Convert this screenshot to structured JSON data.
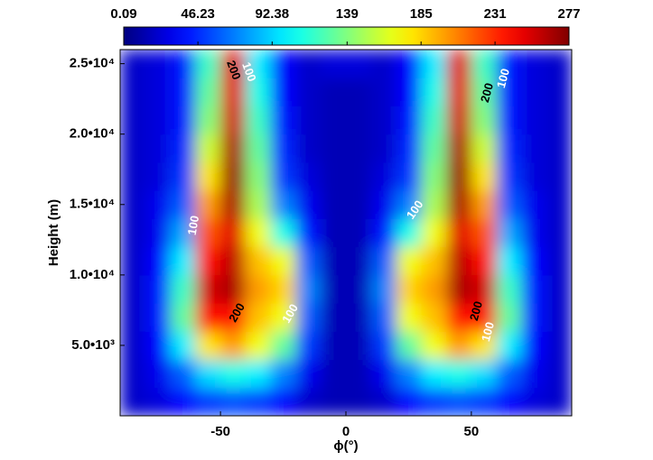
{
  "chart_data": {
    "type": "heatmap",
    "colormap": "jet",
    "xlabel": "ϕ(°)",
    "ylabel": "Height (m)",
    "xlim": [
      -90,
      90
    ],
    "xticks": [
      -50,
      0,
      50
    ],
    "ylim": [
      0,
      26000
    ],
    "yticks": [
      {
        "value": 5000,
        "label": "5.0•10³"
      },
      {
        "value": 10000,
        "label": "1.0•10⁴"
      },
      {
        "value": 15000,
        "label": "1.5•10⁴"
      },
      {
        "value": 20000,
        "label": "2.0•10⁴"
      },
      {
        "value": 25000,
        "label": "2.5•10⁴"
      }
    ],
    "clim": [
      0.09,
      277
    ],
    "cticks": [
      0.09,
      46.23,
      92.38,
      139,
      185,
      231,
      277
    ],
    "x": [
      -85,
      -75,
      -65,
      -55,
      -45,
      -35,
      -25,
      -15,
      -5,
      5,
      15,
      25,
      35,
      45,
      55,
      65,
      75,
      85
    ],
    "y": [
      1000,
      3000,
      5000,
      7000,
      9000,
      11000,
      13000,
      15000,
      17000,
      19000,
      21000,
      23000,
      25000
    ],
    "values": [
      [
        20,
        25,
        35,
        50,
        55,
        50,
        35,
        20,
        15,
        15,
        20,
        35,
        50,
        55,
        50,
        35,
        25,
        20
      ],
      [
        20,
        30,
        60,
        95,
        110,
        100,
        70,
        30,
        15,
        15,
        30,
        70,
        100,
        110,
        95,
        60,
        30,
        20
      ],
      [
        20,
        35,
        100,
        180,
        200,
        170,
        130,
        50,
        15,
        15,
        50,
        130,
        170,
        200,
        180,
        100,
        35,
        20
      ],
      [
        20,
        40,
        130,
        240,
        240,
        190,
        170,
        60,
        15,
        15,
        60,
        170,
        190,
        240,
        240,
        130,
        40,
        20
      ],
      [
        20,
        40,
        120,
        255,
        265,
        200,
        185,
        70,
        15,
        15,
        70,
        185,
        200,
        265,
        255,
        120,
        40,
        20
      ],
      [
        20,
        35,
        100,
        240,
        260,
        190,
        170,
        60,
        15,
        15,
        60,
        170,
        190,
        260,
        240,
        100,
        35,
        20
      ],
      [
        20,
        30,
        80,
        220,
        250,
        170,
        110,
        40,
        15,
        15,
        40,
        110,
        170,
        250,
        220,
        80,
        30,
        20
      ],
      [
        20,
        30,
        60,
        200,
        265,
        150,
        70,
        30,
        15,
        15,
        30,
        70,
        150,
        265,
        200,
        60,
        30,
        20
      ],
      [
        20,
        25,
        50,
        180,
        270,
        140,
        50,
        25,
        15,
        15,
        25,
        50,
        140,
        270,
        180,
        50,
        25,
        20
      ],
      [
        20,
        25,
        45,
        160,
        265,
        130,
        45,
        20,
        15,
        15,
        20,
        45,
        130,
        265,
        160,
        45,
        25,
        20
      ],
      [
        20,
        25,
        40,
        140,
        255,
        120,
        40,
        20,
        15,
        15,
        20,
        40,
        120,
        255,
        140,
        40,
        25,
        20
      ],
      [
        20,
        25,
        40,
        130,
        250,
        110,
        35,
        20,
        15,
        15,
        20,
        35,
        110,
        250,
        130,
        40,
        25,
        20
      ],
      [
        20,
        25,
        40,
        120,
        250,
        100,
        35,
        20,
        25,
        25,
        20,
        35,
        100,
        250,
        120,
        40,
        25,
        20
      ]
    ],
    "contour_labels": [
      "200",
      "100",
      "100",
      "200",
      "100",
      "200",
      "100",
      "100",
      "200",
      "100"
    ]
  }
}
